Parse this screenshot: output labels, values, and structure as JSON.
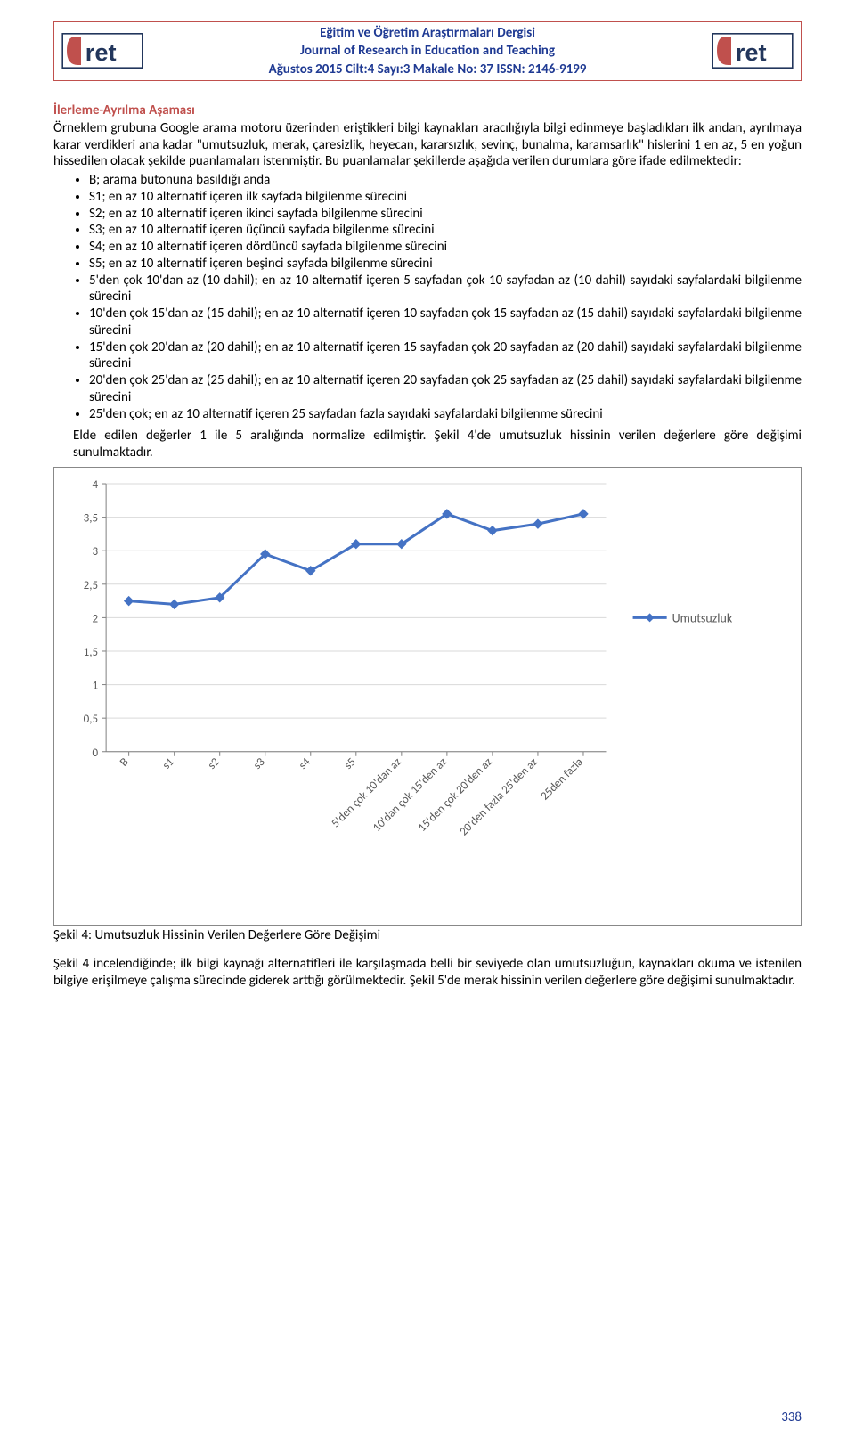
{
  "header": {
    "line1": "Eğitim ve Öğretim Araştırmaları Dergisi",
    "line2": "Journal of Research in Education and Teaching",
    "line3": "Ağustos 2015 Cilt:4 Sayı:3 Makale No: 37 ISSN: 2146-9199",
    "logo_text": "ret",
    "logo_j_color": "#c0504d",
    "logo_text_color": "#22365c",
    "border_color": "#c0504d"
  },
  "section_title": "İlerleme-Ayrılma Aşaması",
  "intro_para": "Örneklem grubuna Google arama motoru üzerinden eriştikleri bilgi kaynakları aracılığıyla bilgi edinmeye başladıkları ilk andan, ayrılmaya karar verdikleri ana kadar \"umutsuzluk, merak, çaresizlik, heyecan, kararsızlık, sevinç, bunalma, karamsarlık\" hislerini 1 en az, 5 en yoğun hissedilen olacak şekilde puanlamaları istenmiştir. Bu puanlamalar şekillerde aşağıda verilen durumlara göre ifade edilmektedir:",
  "bullets": [
    "B; arama butonuna basıldığı anda",
    "S1; en az 10 alternatif içeren ilk sayfada bilgilenme sürecini",
    "S2; en az 10 alternatif içeren ikinci sayfada bilgilenme sürecini",
    "S3; en az 10 alternatif içeren üçüncü sayfada bilgilenme sürecini",
    "S4; en az 10 alternatif içeren dördüncü sayfada bilgilenme sürecini",
    "S5; en az 10 alternatif içeren beşinci sayfada bilgilenme sürecini",
    "5'den çok 10'dan az (10 dahil); en az 10 alternatif içeren 5 sayfadan çok 10 sayfadan az (10 dahil) sayıdaki sayfalardaki bilgilenme sürecini",
    "10'den çok 15'dan az (15 dahil); en az 10 alternatif içeren 10 sayfadan çok 15 sayfadan az (15 dahil) sayıdaki sayfalardaki bilgilenme sürecini",
    "15'den çok 20'dan az (20 dahil); en az 10 alternatif içeren 15 sayfadan çok 20 sayfadan az (20 dahil) sayıdaki sayfalardaki bilgilenme sürecini",
    "20'den çok 25'dan az (25 dahil); en az 10 alternatif içeren 20 sayfadan çok 25 sayfadan az (25 dahil) sayıdaki sayfalardaki bilgilenme sürecini",
    "25'den çok; en az 10 alternatif içeren 25 sayfadan fazla sayıdaki sayfalardaki bilgilenme sürecini"
  ],
  "post_bullets_para": "Elde edilen değerler 1 ile 5 aralığında normalize edilmiştir. Şekil 4'de umutsuzluk hissinin verilen değerlere göre değişimi sunulmaktadır.",
  "chart": {
    "type": "line",
    "series_label": "Umutsuzluk",
    "categories": [
      "B",
      "s1",
      "s2",
      "s3",
      "s4",
      "s5",
      "5'den çok 10'dan az",
      "10'dan çok 15'den az",
      "15'den çok 20'den az",
      "20'den fazla 25'den az",
      "25den fazla"
    ],
    "values": [
      2.25,
      2.2,
      2.3,
      2.95,
      2.7,
      3.1,
      3.1,
      3.55,
      3.3,
      3.4,
      3.55
    ],
    "ylim": [
      0,
      4
    ],
    "ytick_step": 0.5,
    "yticks": [
      "0",
      "0,5",
      "1",
      "1,5",
      "2",
      "2,5",
      "3",
      "3,5",
      "4"
    ],
    "line_color": "#4472c4",
    "marker_color": "#4472c4",
    "line_width": 3,
    "marker_size": 5,
    "background_color": "#ffffff",
    "grid_color": "#d9d9d9",
    "axis_color": "#808080",
    "label_fontsize": 13,
    "label_rotation": -45,
    "legend_position": "right",
    "legend_marker": "diamond"
  },
  "caption": "Şekil 4: Umutsuzluk Hissinin Verilen Değerlere Göre Değişimi",
  "closing_para": "Şekil 4 incelendiğinde; ilk bilgi kaynağı alternatifleri ile karşılaşmada belli bir seviyede olan umutsuzluğun, kaynakları okuma ve istenilen bilgiye erişilmeye çalışma sürecinde giderek arttığı görülmektedir. Şekil 5'de merak hissinin verilen değerlere göre değişimi sunulmaktadır.",
  "page_number": "338"
}
